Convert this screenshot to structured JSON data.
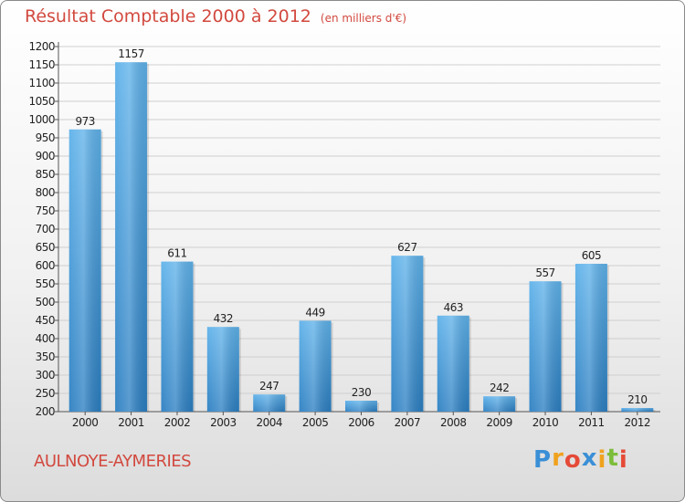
{
  "title": "Résultat Comptable 2000 à 2012",
  "unit": "(en milliers d'€)",
  "city": "AULNOYE-AYMERIES",
  "brand": {
    "letters": [
      {
        "ch": "P",
        "color": "#3a8fd6"
      },
      {
        "ch": "r",
        "color": "#f0a21e"
      },
      {
        "ch": "o",
        "color": "#e54a37"
      },
      {
        "ch": "x",
        "color": "#3a8fd6"
      },
      {
        "ch": "i",
        "color": "#f0a21e"
      },
      {
        "ch": "t",
        "color": "#7cbd3a"
      },
      {
        "ch": "i",
        "color": "#e54a37"
      }
    ]
  },
  "colors": {
    "bar_top": "#5fb2ea",
    "bar_bottom": "#2c7fc2",
    "grid": "#cfcfcf",
    "axis_text": "#222222"
  },
  "chart_data": {
    "type": "bar",
    "title": "Résultat Comptable 2000 à 2012",
    "xlabel": "",
    "ylabel": "(en milliers d'€)",
    "categories": [
      "2000",
      "2001",
      "2002",
      "2003",
      "2004",
      "2005",
      "2006",
      "2007",
      "2008",
      "2009",
      "2010",
      "2011",
      "2012"
    ],
    "values": [
      973,
      1157,
      611,
      432,
      247,
      449,
      230,
      627,
      463,
      242,
      557,
      605,
      210
    ],
    "ylim": [
      200,
      1200
    ],
    "yticks": [
      200,
      250,
      300,
      350,
      400,
      450,
      500,
      550,
      600,
      650,
      700,
      750,
      800,
      850,
      900,
      950,
      1000,
      1050,
      1100,
      1150,
      1200
    ],
    "grid": true
  }
}
